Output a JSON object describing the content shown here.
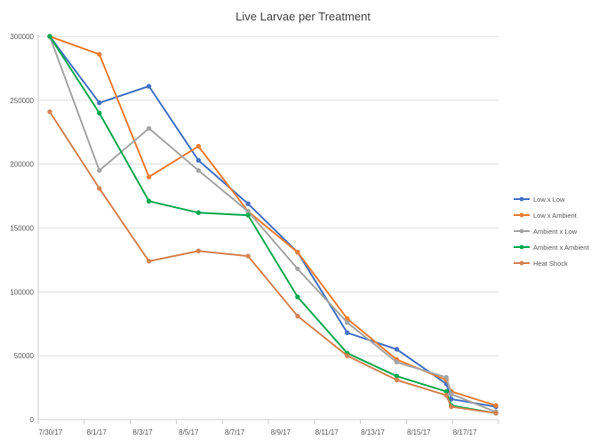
{
  "chart_data": {
    "type": "line",
    "title": "Live Larvae per Treatment",
    "xlabel": "",
    "ylabel": "",
    "ylim": [
      0,
      300000
    ],
    "yticks": [
      0,
      50000,
      100000,
      150000,
      200000,
      250000,
      300000
    ],
    "ytick_labels": [
      "0",
      "50000",
      "100000",
      "150000",
      "200000",
      "250000",
      "300000"
    ],
    "x_dates": [
      "7/30/17",
      "8/1/17",
      "8/3/17",
      "8/5/17",
      "8/7/17",
      "8/9/17",
      "8/11/17",
      "8/13/17",
      "8/15/17",
      "8/17/17"
    ],
    "legend_position": "right",
    "series": [
      {
        "name": "Low x Low",
        "color": "#4472C4",
        "x": [
          0,
          1,
          2,
          3,
          4,
          5,
          6,
          7,
          8,
          8.1,
          9
        ],
        "values": [
          300000,
          248000,
          261000,
          203000,
          169000,
          131000,
          68000,
          55000,
          28000,
          16000,
          10000
        ]
      },
      {
        "name": "Low x Ambient",
        "color": "#ED7D31",
        "x": [
          0,
          1,
          2,
          3,
          4,
          5,
          6,
          7,
          8,
          8.1,
          9
        ],
        "values": [
          300000,
          286000,
          190000,
          214000,
          163000,
          131000,
          79000,
          47000,
          31000,
          22000,
          11000
        ]
      },
      {
        "name": "Ambient x Low",
        "color": "#A5A5A5",
        "x": [
          0,
          1,
          2,
          3,
          4,
          5,
          6,
          7,
          8,
          8.1,
          9
        ],
        "values": [
          300000,
          195000,
          228000,
          195000,
          163000,
          118000,
          76000,
          45000,
          33000,
          20000,
          6000
        ]
      },
      {
        "name": "Ambient x Ambient",
        "color": "#00A94F",
        "x": [
          0,
          1,
          2,
          3,
          4,
          5,
          6,
          7,
          8,
          8.1,
          9
        ],
        "values": [
          300000,
          240000,
          171000,
          162000,
          160000,
          96000,
          52000,
          34000,
          22000,
          11000,
          5000
        ]
      },
      {
        "name": "Heat Shock",
        "color": "#D58353",
        "x": [
          0,
          1,
          2,
          3,
          4,
          5,
          6,
          7,
          8,
          8.1,
          9
        ],
        "values": [
          241000,
          181000,
          124000,
          132000,
          128000,
          81000,
          50000,
          31000,
          19000,
          10000,
          5000
        ]
      }
    ]
  }
}
